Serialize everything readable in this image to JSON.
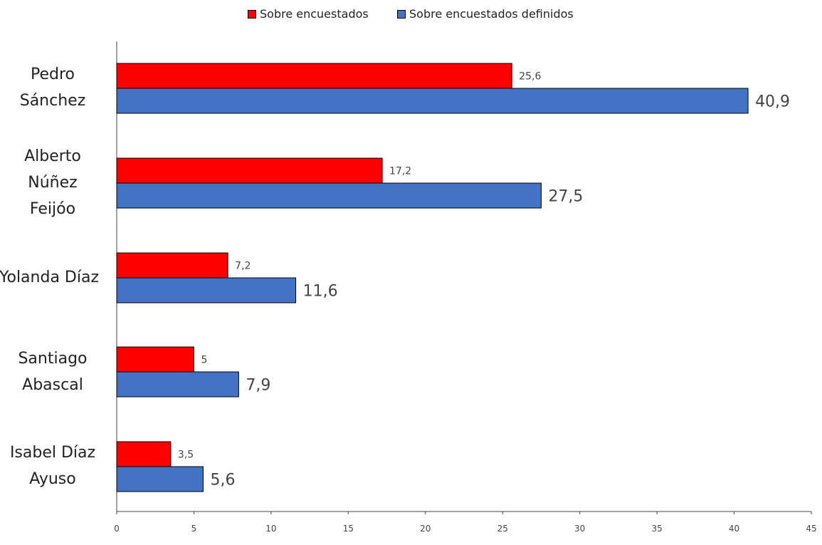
{
  "chart_data": {
    "type": "bar",
    "orientation": "horizontal",
    "categories": [
      "Pedro\nSánchez",
      "Alberto\nNúñez\nFeijóo",
      "Yolanda Díaz",
      "Santiago\nAbascal",
      "Isabel Díaz\nAyuso"
    ],
    "series": [
      {
        "name": "Sobre encuestados",
        "color": "#ff0000",
        "values": [
          25.6,
          17.2,
          7.2,
          5,
          3.5
        ],
        "labels": [
          "25,6",
          "17,2",
          "7,2",
          "5",
          "3,5"
        ]
      },
      {
        "name": "Sobre encuestados definidos",
        "color": "#4472c4",
        "values": [
          40.9,
          27.5,
          11.6,
          7.9,
          5.6
        ],
        "labels": [
          "40,9",
          "27,5",
          "11,6",
          "7,9",
          "5,6"
        ]
      }
    ],
    "xlim": [
      0,
      45
    ],
    "xticks": [
      0,
      5,
      10,
      15,
      20,
      25,
      30,
      35,
      40,
      45
    ],
    "grid": false,
    "legend": "top-center"
  }
}
